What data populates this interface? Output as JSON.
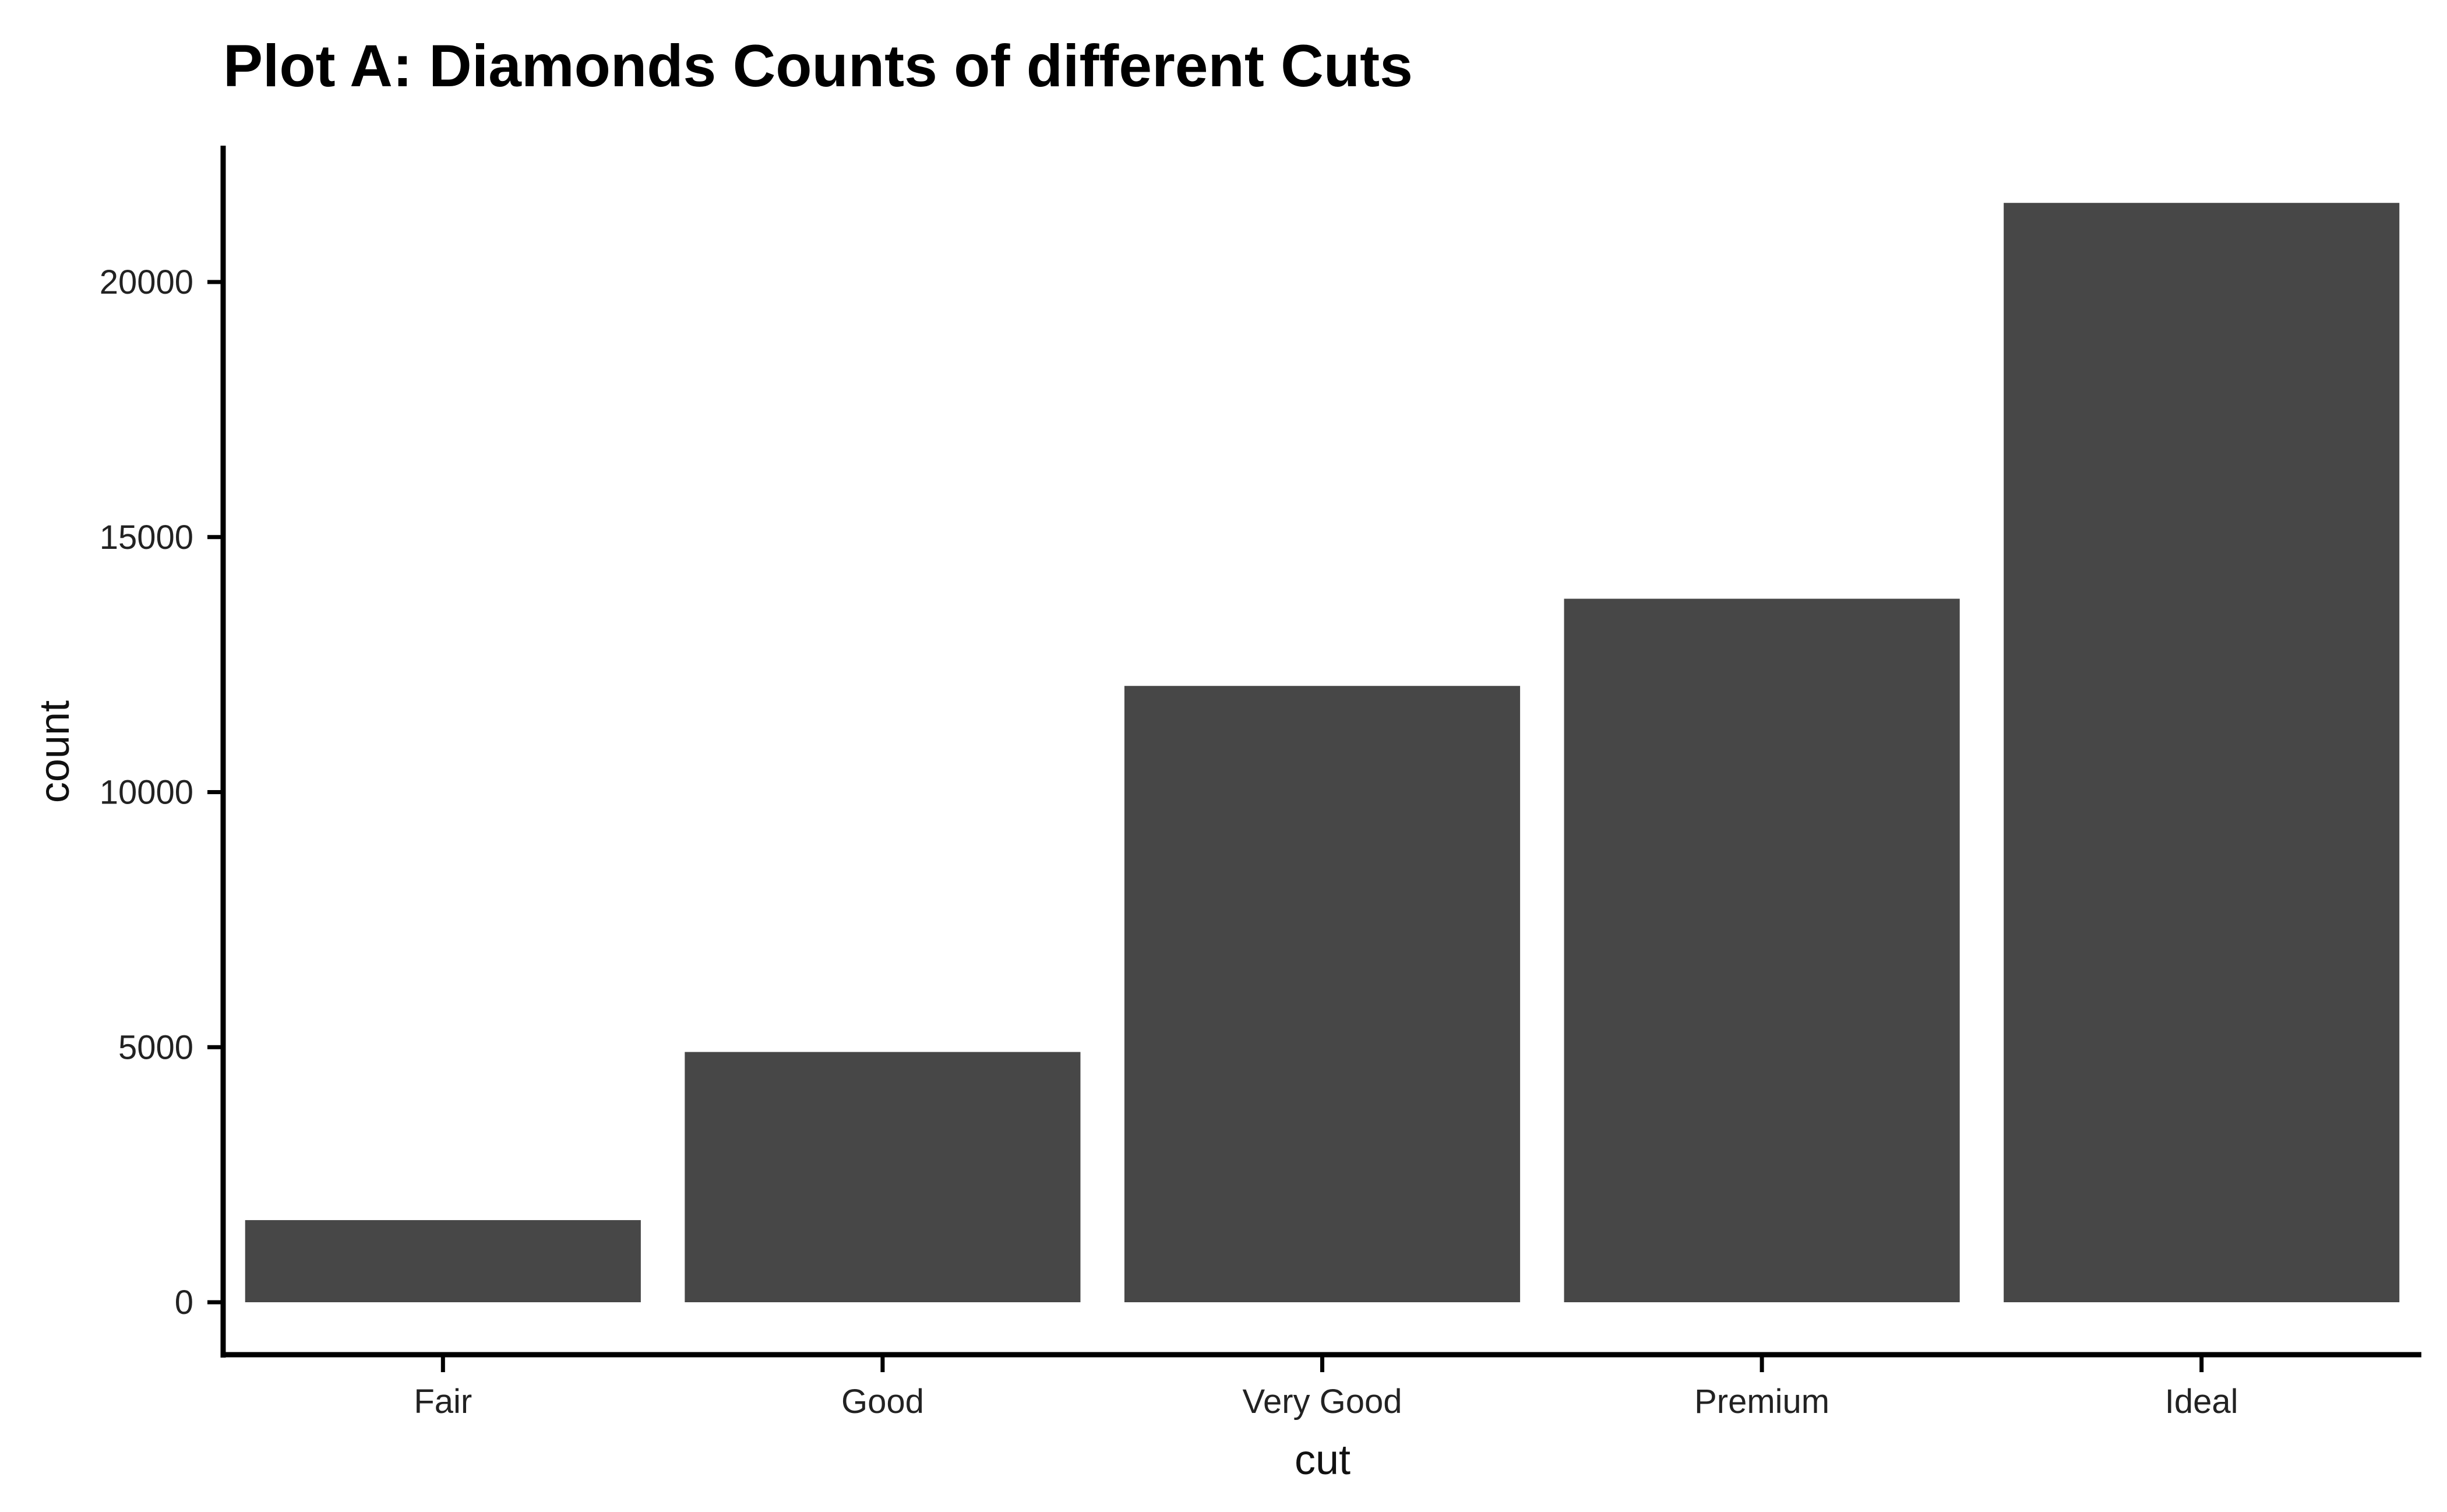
{
  "chart_data": {
    "type": "bar",
    "title": "Plot A: Diamonds Counts of different Cuts",
    "xlabel": "cut",
    "ylabel": "count",
    "categories": [
      "Fair",
      "Good",
      "Very Good",
      "Premium",
      "Ideal"
    ],
    "values": [
      1610,
      4906,
      12082,
      13791,
      21551
    ],
    "ylim": [
      0,
      22000
    ],
    "yticks": [
      0,
      5000,
      10000,
      15000,
      20000
    ],
    "grid": false,
    "legend": "none",
    "bar_color": "#474747",
    "axis_color": "#000000"
  }
}
